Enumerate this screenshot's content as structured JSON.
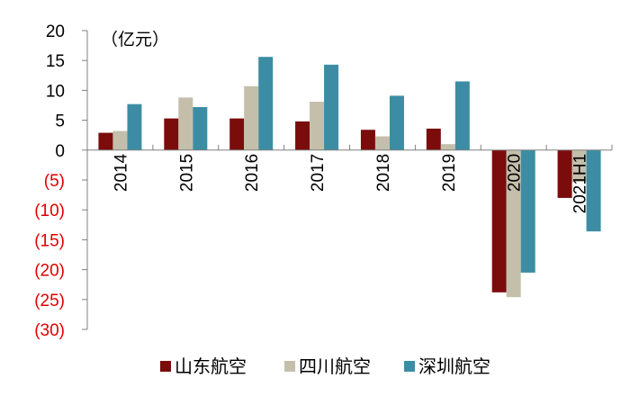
{
  "chart_data": {
    "type": "bar",
    "unit_label": "（亿元）",
    "categories": [
      "2014",
      "2015",
      "2016",
      "2017",
      "2018",
      "2019",
      "2020",
      "2021H1"
    ],
    "series": [
      {
        "name": "山东航空",
        "color": "#7b0c0c",
        "values": [
          2.9,
          5.3,
          5.3,
          4.8,
          3.4,
          3.6,
          -23.8,
          -8.0
        ]
      },
      {
        "name": "四川航空",
        "color": "#c4bfab",
        "values": [
          3.2,
          8.8,
          10.7,
          8.1,
          2.3,
          1.0,
          -24.6,
          -5.3
        ]
      },
      {
        "name": "深圳航空",
        "color": "#3c8da4",
        "values": [
          7.7,
          7.2,
          15.6,
          14.3,
          9.1,
          11.5,
          -20.5,
          -13.6
        ]
      }
    ],
    "y_ticks": [
      {
        "value": 20,
        "label": "20"
      },
      {
        "value": 15,
        "label": "15"
      },
      {
        "value": 10,
        "label": "10"
      },
      {
        "value": 5,
        "label": "5"
      },
      {
        "value": 0,
        "label": "0"
      },
      {
        "value": -5,
        "label": "(5)"
      },
      {
        "value": -10,
        "label": "(10)"
      },
      {
        "value": -15,
        "label": "(15)"
      },
      {
        "value": -20,
        "label": "(20)"
      },
      {
        "value": -25,
        "label": "(25)"
      },
      {
        "value": -30,
        "label": "(30)"
      }
    ],
    "ylim": [
      -30,
      20
    ],
    "negative_tick_color": "#e00000",
    "grid": false,
    "legend_position": "bottom"
  }
}
